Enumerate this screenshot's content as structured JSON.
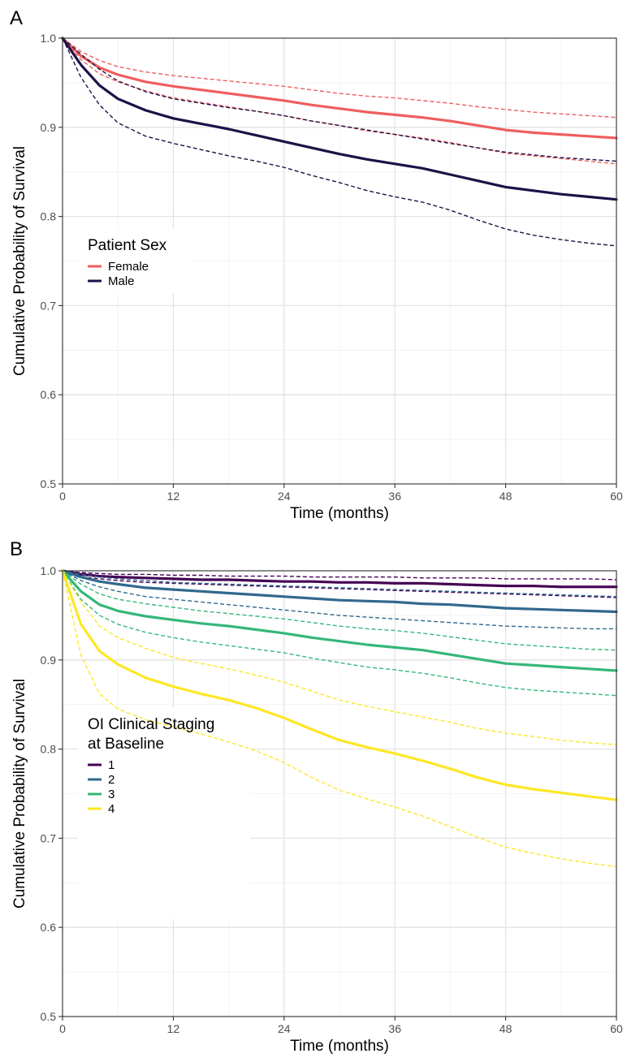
{
  "chart_data": [
    {
      "panel_label": "A",
      "type": "line",
      "xlabel": "Time (months)",
      "ylabel": "Cumulative Probability of Survival",
      "xlim": [
        0,
        60
      ],
      "ylim": [
        0.5,
        1.0
      ],
      "x_ticks": [
        "0",
        "12",
        "24",
        "36",
        "48",
        "60"
      ],
      "y_ticks": [
        "0.5",
        "0.6",
        "0.7",
        "0.8",
        "0.9",
        "1.0"
      ],
      "grid": true,
      "legend": {
        "title_lines": [
          "Patient Sex"
        ],
        "position": "left"
      },
      "x": [
        0,
        2,
        4,
        6,
        9,
        12,
        15,
        18,
        21,
        24,
        27,
        30,
        33,
        36,
        39,
        42,
        45,
        48,
        51,
        54,
        57,
        60
      ],
      "series": [
        {
          "name": "Female",
          "color": "#ef5e5e",
          "values": [
            1.0,
            0.98,
            0.967,
            0.959,
            0.951,
            0.946,
            0.942,
            0.938,
            0.934,
            0.93,
            0.925,
            0.921,
            0.917,
            0.914,
            0.911,
            0.907,
            0.902,
            0.897,
            0.894,
            0.892,
            0.89,
            0.888
          ],
          "lower": [
            1.0,
            0.976,
            0.96,
            0.951,
            0.941,
            0.933,
            0.928,
            0.923,
            0.918,
            0.913,
            0.907,
            0.902,
            0.896,
            0.892,
            0.888,
            0.883,
            0.877,
            0.871,
            0.868,
            0.865,
            0.862,
            0.859
          ],
          "upper": [
            1.0,
            0.985,
            0.975,
            0.968,
            0.962,
            0.958,
            0.955,
            0.952,
            0.949,
            0.946,
            0.942,
            0.938,
            0.935,
            0.933,
            0.93,
            0.927,
            0.923,
            0.92,
            0.917,
            0.915,
            0.913,
            0.911
          ]
        },
        {
          "name": "Male",
          "color": "#1d1147",
          "values": [
            1.0,
            0.97,
            0.947,
            0.932,
            0.919,
            0.91,
            0.904,
            0.898,
            0.891,
            0.884,
            0.877,
            0.87,
            0.864,
            0.859,
            0.854,
            0.847,
            0.84,
            0.833,
            0.829,
            0.825,
            0.822,
            0.819
          ],
          "lower": [
            1.0,
            0.956,
            0.925,
            0.905,
            0.89,
            0.882,
            0.875,
            0.868,
            0.862,
            0.855,
            0.846,
            0.838,
            0.829,
            0.822,
            0.816,
            0.807,
            0.796,
            0.786,
            0.779,
            0.774,
            0.77,
            0.767
          ],
          "upper": [
            1.0,
            0.982,
            0.965,
            0.952,
            0.94,
            0.932,
            0.927,
            0.922,
            0.918,
            0.913,
            0.907,
            0.902,
            0.897,
            0.892,
            0.887,
            0.882,
            0.877,
            0.872,
            0.869,
            0.866,
            0.864,
            0.862
          ]
        }
      ]
    },
    {
      "panel_label": "B",
      "type": "line",
      "xlabel": "Time (months)",
      "ylabel": "Cumulative Probability of Survival",
      "xlim": [
        0,
        60
      ],
      "ylim": [
        0.5,
        1.0
      ],
      "x_ticks": [
        "0",
        "12",
        "24",
        "36",
        "48",
        "60"
      ],
      "y_ticks": [
        "0.5",
        "0.6",
        "0.7",
        "0.8",
        "0.9",
        "1.0"
      ],
      "grid": true,
      "legend": {
        "title_lines": [
          "OI Clinical Staging",
          "at Baseline"
        ],
        "position": "left"
      },
      "x": [
        0,
        2,
        4,
        6,
        9,
        12,
        15,
        18,
        21,
        24,
        27,
        30,
        33,
        36,
        39,
        42,
        45,
        48,
        51,
        54,
        57,
        60
      ],
      "series": [
        {
          "name": "1",
          "color": "#440154",
          "values": [
            1.0,
            0.996,
            0.994,
            0.993,
            0.992,
            0.991,
            0.99,
            0.99,
            0.989,
            0.988,
            0.988,
            0.987,
            0.987,
            0.986,
            0.986,
            0.985,
            0.984,
            0.983,
            0.983,
            0.982,
            0.982,
            0.982
          ],
          "lower": [
            1.0,
            0.993,
            0.991,
            0.989,
            0.987,
            0.986,
            0.985,
            0.984,
            0.983,
            0.982,
            0.981,
            0.98,
            0.979,
            0.978,
            0.977,
            0.976,
            0.975,
            0.974,
            0.973,
            0.972,
            0.971,
            0.97
          ],
          "upper": [
            1.0,
            0.998,
            0.997,
            0.996,
            0.996,
            0.995,
            0.995,
            0.994,
            0.994,
            0.994,
            0.993,
            0.993,
            0.993,
            0.993,
            0.992,
            0.992,
            0.992,
            0.991,
            0.991,
            0.991,
            0.991,
            0.99
          ]
        },
        {
          "name": "2",
          "color": "#31688e",
          "values": [
            1.0,
            0.993,
            0.988,
            0.985,
            0.981,
            0.979,
            0.977,
            0.975,
            0.973,
            0.971,
            0.969,
            0.967,
            0.966,
            0.965,
            0.963,
            0.962,
            0.96,
            0.958,
            0.957,
            0.956,
            0.955,
            0.954
          ],
          "lower": [
            1.0,
            0.989,
            0.982,
            0.977,
            0.971,
            0.968,
            0.965,
            0.962,
            0.959,
            0.956,
            0.953,
            0.95,
            0.948,
            0.946,
            0.944,
            0.942,
            0.94,
            0.938,
            0.937,
            0.936,
            0.935,
            0.935
          ],
          "upper": [
            1.0,
            0.996,
            0.993,
            0.991,
            0.989,
            0.987,
            0.986,
            0.985,
            0.984,
            0.983,
            0.982,
            0.981,
            0.98,
            0.979,
            0.978,
            0.977,
            0.976,
            0.975,
            0.974,
            0.973,
            0.972,
            0.971
          ]
        },
        {
          "name": "3",
          "color": "#35b779",
          "values": [
            1.0,
            0.977,
            0.962,
            0.955,
            0.949,
            0.945,
            0.941,
            0.938,
            0.934,
            0.93,
            0.925,
            0.921,
            0.917,
            0.914,
            0.911,
            0.906,
            0.901,
            0.896,
            0.894,
            0.892,
            0.89,
            0.888
          ],
          "lower": [
            1.0,
            0.968,
            0.95,
            0.94,
            0.931,
            0.925,
            0.92,
            0.916,
            0.912,
            0.908,
            0.902,
            0.897,
            0.892,
            0.889,
            0.885,
            0.88,
            0.874,
            0.869,
            0.866,
            0.864,
            0.862,
            0.86
          ],
          "upper": [
            1.0,
            0.985,
            0.974,
            0.968,
            0.963,
            0.959,
            0.955,
            0.952,
            0.949,
            0.946,
            0.942,
            0.938,
            0.935,
            0.933,
            0.93,
            0.926,
            0.922,
            0.918,
            0.916,
            0.914,
            0.912,
            0.911
          ]
        },
        {
          "name": "4",
          "color": "#fde725",
          "values": [
            1.0,
            0.94,
            0.91,
            0.895,
            0.88,
            0.87,
            0.862,
            0.855,
            0.846,
            0.835,
            0.822,
            0.81,
            0.802,
            0.795,
            0.787,
            0.778,
            0.768,
            0.76,
            0.755,
            0.751,
            0.747,
            0.743
          ],
          "lower": [
            1.0,
            0.905,
            0.862,
            0.845,
            0.833,
            0.825,
            0.817,
            0.808,
            0.798,
            0.785,
            0.768,
            0.754,
            0.744,
            0.735,
            0.725,
            0.713,
            0.701,
            0.69,
            0.683,
            0.677,
            0.672,
            0.668
          ],
          "upper": [
            1.0,
            0.965,
            0.938,
            0.925,
            0.913,
            0.903,
            0.896,
            0.89,
            0.883,
            0.875,
            0.865,
            0.855,
            0.848,
            0.842,
            0.836,
            0.83,
            0.823,
            0.818,
            0.814,
            0.81,
            0.807,
            0.805
          ]
        }
      ]
    }
  ]
}
